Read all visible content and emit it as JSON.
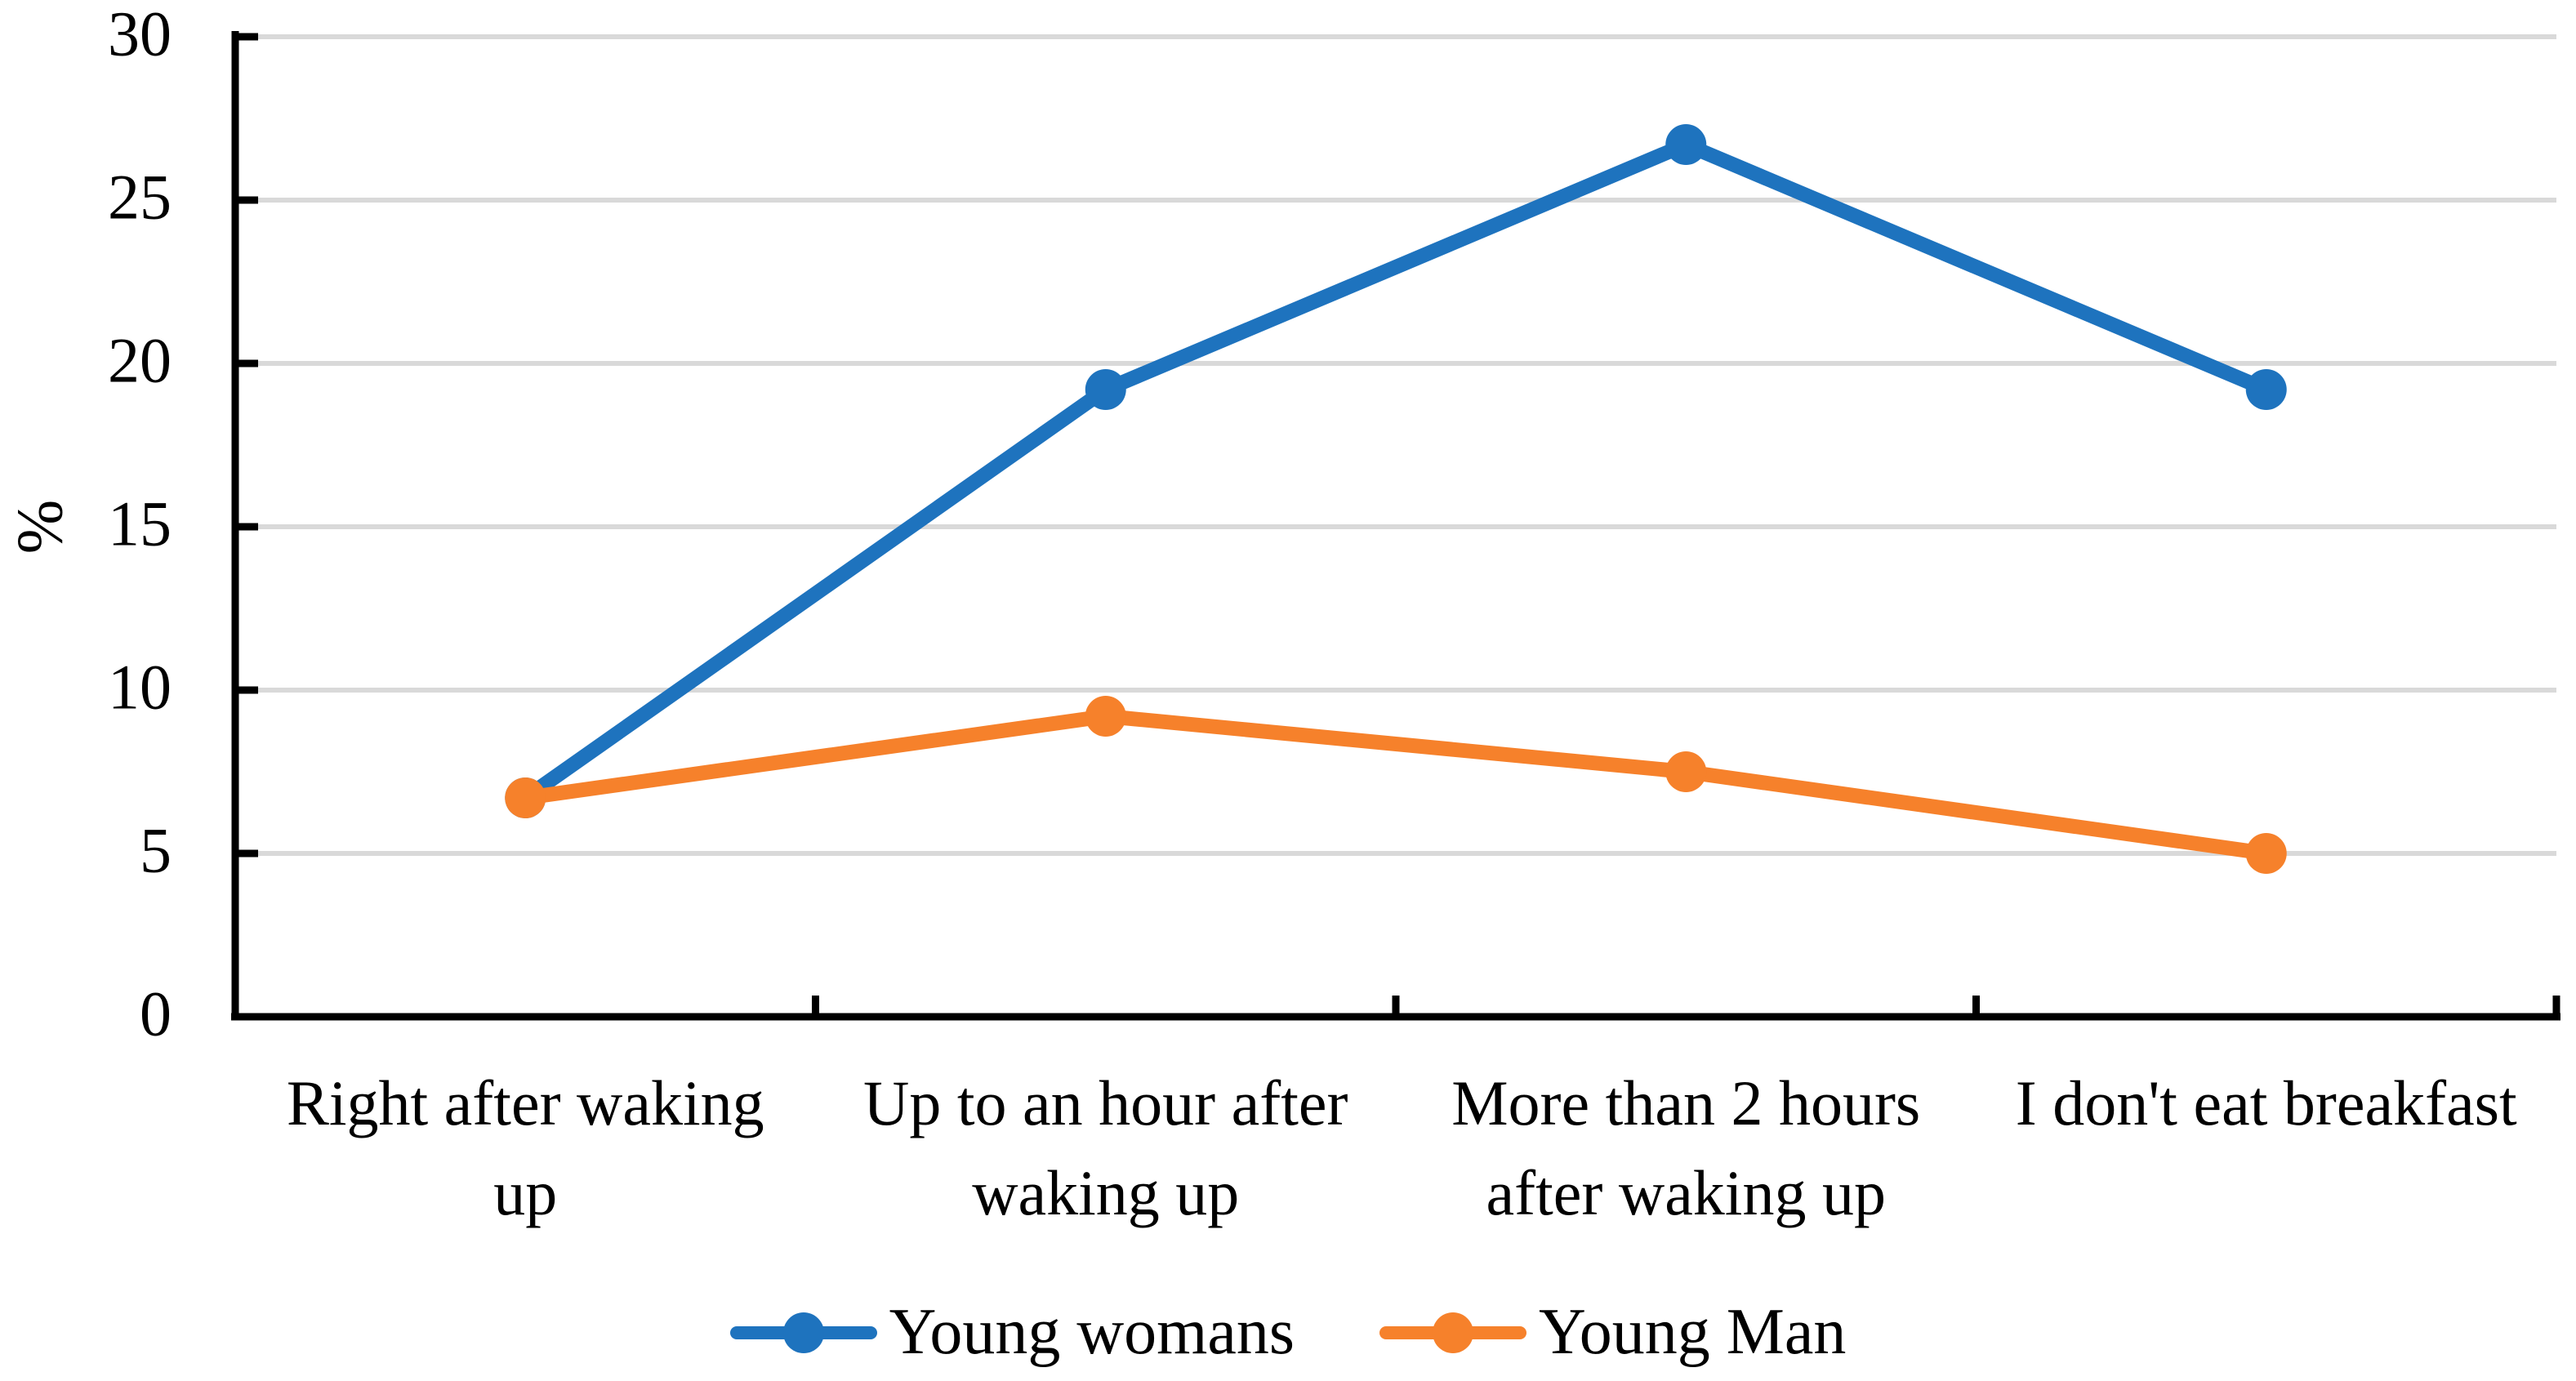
{
  "chart_data": {
    "type": "line",
    "title": "",
    "xlabel": "",
    "ylabel": "%",
    "categories": [
      "Right after waking\nup",
      "Up to an hour after\nwaking up",
      "More than 2 hours\nafter waking up",
      "I don't eat breakfast"
    ],
    "y_ticks": [
      0,
      5,
      10,
      15,
      20,
      25,
      30
    ],
    "ylim": [
      0,
      30
    ],
    "grid": "horizontal",
    "legend_position": "bottom",
    "series": [
      {
        "name": "Young womans",
        "color": "#1E73BE",
        "values": [
          6.7,
          19.2,
          26.7,
          19.2
        ]
      },
      {
        "name": "Young Man",
        "color": "#F6812B",
        "values": [
          6.7,
          9.2,
          7.5,
          5.0
        ]
      }
    ],
    "colors": {
      "axis": "#000000",
      "gridline": "#D9D9D9",
      "text": "#000000",
      "background": "#FFFFFF"
    }
  }
}
